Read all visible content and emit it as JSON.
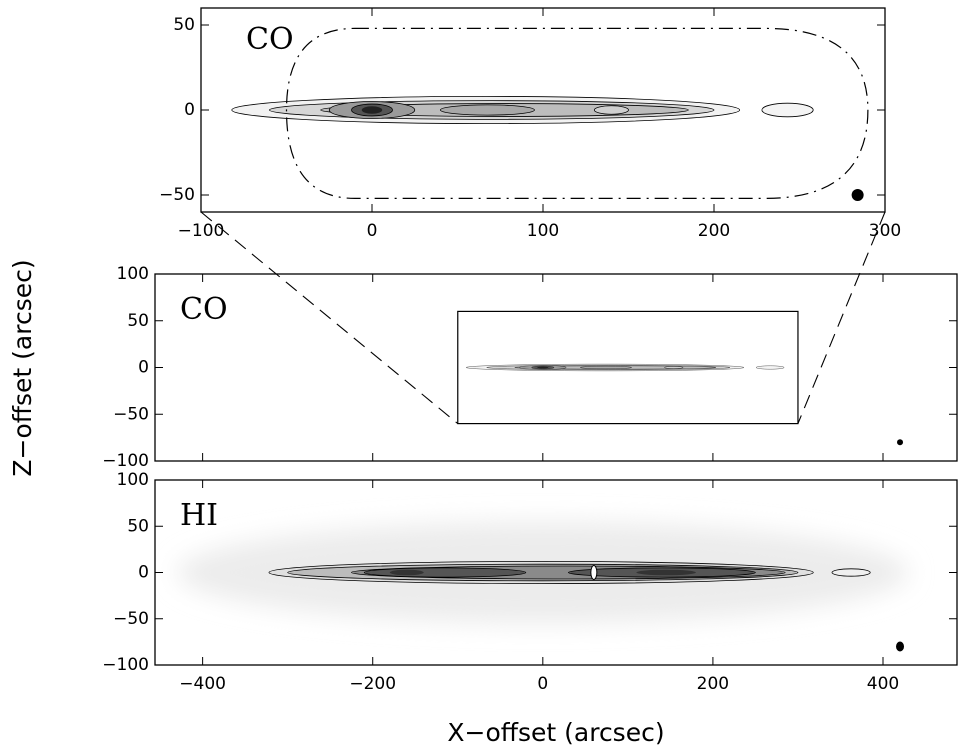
{
  "chart_data": [
    {
      "type": "map",
      "label": "CO",
      "xlim": [
        -100,
        300
      ],
      "ylim": [
        -60,
        60
      ],
      "xticks": [
        {
          "value": -100,
          "label": "−100"
        },
        0,
        100,
        200,
        300
      ],
      "yticks": [
        50,
        0,
        {
          "value": -50,
          "label": "−50"
        }
      ],
      "xtick_labels": true,
      "zoom": true
    },
    {
      "type": "map",
      "label": "CO",
      "xlim": [
        -456,
        487
      ],
      "ylim": [
        -100,
        100
      ],
      "xticks": [
        -400,
        -200,
        0,
        200,
        400
      ],
      "yticks": [
        100,
        50,
        0,
        {
          "value": -50,
          "label": "−50"
        },
        {
          "value": -100,
          "label": "−100"
        }
      ],
      "xtick_labels": false,
      "inset": true
    },
    {
      "type": "map",
      "label": "HI",
      "xlim": [
        -456,
        487
      ],
      "ylim": [
        -100,
        100
      ],
      "xticks": [
        {
          "value": -400,
          "label": "−400"
        },
        {
          "value": -200,
          "label": "−200"
        },
        0,
        200,
        400
      ],
      "yticks": [
        100,
        50,
        0,
        {
          "value": -50,
          "label": "−50"
        },
        {
          "value": -100,
          "label": "−100"
        }
      ],
      "xtick_labels": true
    }
  ],
  "ylabel": "Z−offset (arcsec)",
  "xlabel": "X−offset (arcsec)"
}
